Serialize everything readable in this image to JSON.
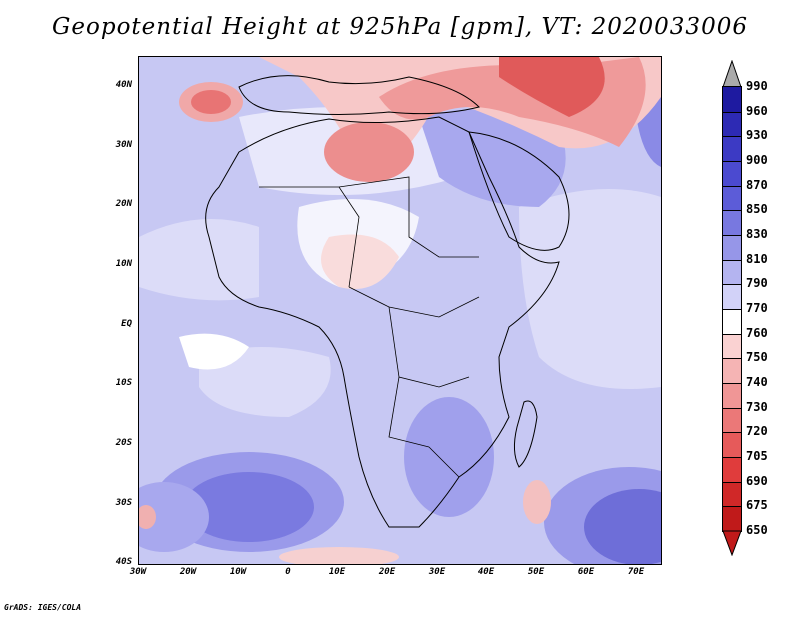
{
  "title": "Geopotential Height at 925hPa [gpm], VT: 2020033006",
  "footer": "GrADS: IGES/COLA",
  "map": {
    "region": "Africa and surrounding oceans",
    "projection": "latlon",
    "lat_labels": [
      "40N",
      "30N",
      "20N",
      "10N",
      "EQ",
      "10S",
      "20S",
      "30S",
      "40S"
    ],
    "lon_labels": [
      "30W",
      "20W",
      "10W",
      "0",
      "10E",
      "20E",
      "30E",
      "40E",
      "50E",
      "60E",
      "70E"
    ],
    "lat_range": [
      -40,
      45
    ],
    "lon_range": [
      -30,
      75
    ]
  },
  "colorbar": {
    "levels": [
      "990",
      "960",
      "930",
      "900",
      "870",
      "850",
      "830",
      "810",
      "790",
      "770",
      "760",
      "750",
      "740",
      "730",
      "720",
      "705",
      "690",
      "675",
      "650"
    ],
    "colors": [
      "#aaaaaa",
      "#1e1aa0",
      "#2d2ab4",
      "#3c3ac4",
      "#4b4ad0",
      "#5c5cd8",
      "#7878e0",
      "#9696e8",
      "#b4b4f0",
      "#d2d2f8",
      "#ffffff",
      "#fad2d2",
      "#f5b4b4",
      "#f09696",
      "#eb7878",
      "#e65a5a",
      "#e03c3c",
      "#d02828",
      "#c01a1a"
    ]
  }
}
